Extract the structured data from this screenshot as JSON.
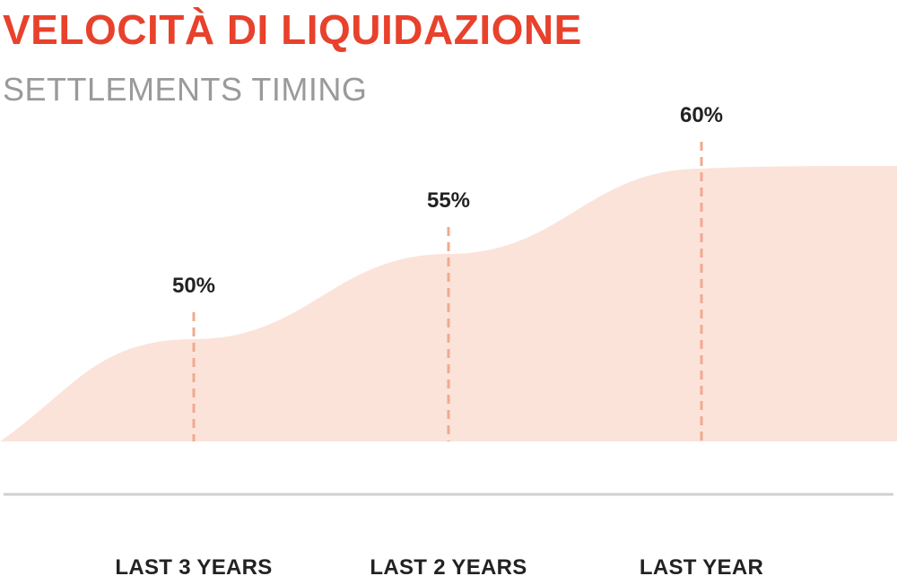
{
  "colors": {
    "title": "#e8412c",
    "subtitle": "#9a9a9a",
    "area_fill": "#fbe3da",
    "marker_line": "#f2a98e",
    "axis_line": "#d0d0d0",
    "label_text": "#222222",
    "background": "#ffffff"
  },
  "chart_data": {
    "type": "area",
    "title": "VELOCITÀ DI LIQUIDAZIONE",
    "subtitle": "SETTLEMENTS TIMING",
    "categories": [
      "LAST 3 YEARS",
      "LAST 2 YEARS",
      "LAST YEAR"
    ],
    "values": [
      50,
      55,
      60
    ],
    "value_labels": [
      "50%",
      "55%",
      "60%"
    ],
    "unit": "%",
    "ylim": [
      44,
      62
    ],
    "grid": false,
    "legend": "none",
    "marker_style": "dashed vertical line at each category"
  }
}
